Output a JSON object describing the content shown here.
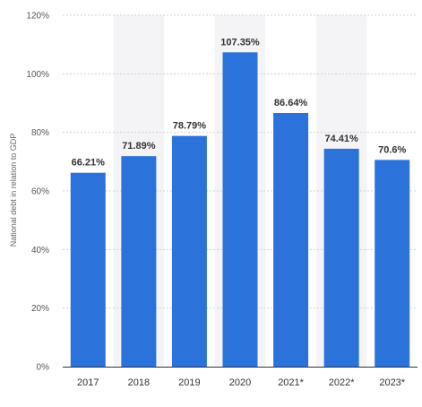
{
  "chart_data": {
    "type": "bar",
    "categories": [
      "2017",
      "2018",
      "2019",
      "2020",
      "2021*",
      "2022*",
      "2023*"
    ],
    "values": [
      66.21,
      71.89,
      78.79,
      107.35,
      86.64,
      74.41,
      70.6
    ],
    "value_labels": [
      "66.21%",
      "71.89%",
      "78.79%",
      "107.35%",
      "86.64%",
      "74.41%",
      "70.6%"
    ],
    "title": "",
    "xlabel": "",
    "ylabel": "National debt in relation to GDP",
    "ylim": [
      0,
      120
    ],
    "y_ticks": [
      0,
      20,
      40,
      60,
      80,
      100,
      120
    ],
    "y_tick_labels": [
      "0%",
      "20%",
      "40%",
      "60%",
      "80%",
      "100%",
      "120%"
    ],
    "grid": true,
    "alternating_column_shading": true,
    "colors": {
      "bar": "#2b72db",
      "shade": "#f4f4f6",
      "grid": "#d0d0d0",
      "axis": "#333333"
    }
  }
}
